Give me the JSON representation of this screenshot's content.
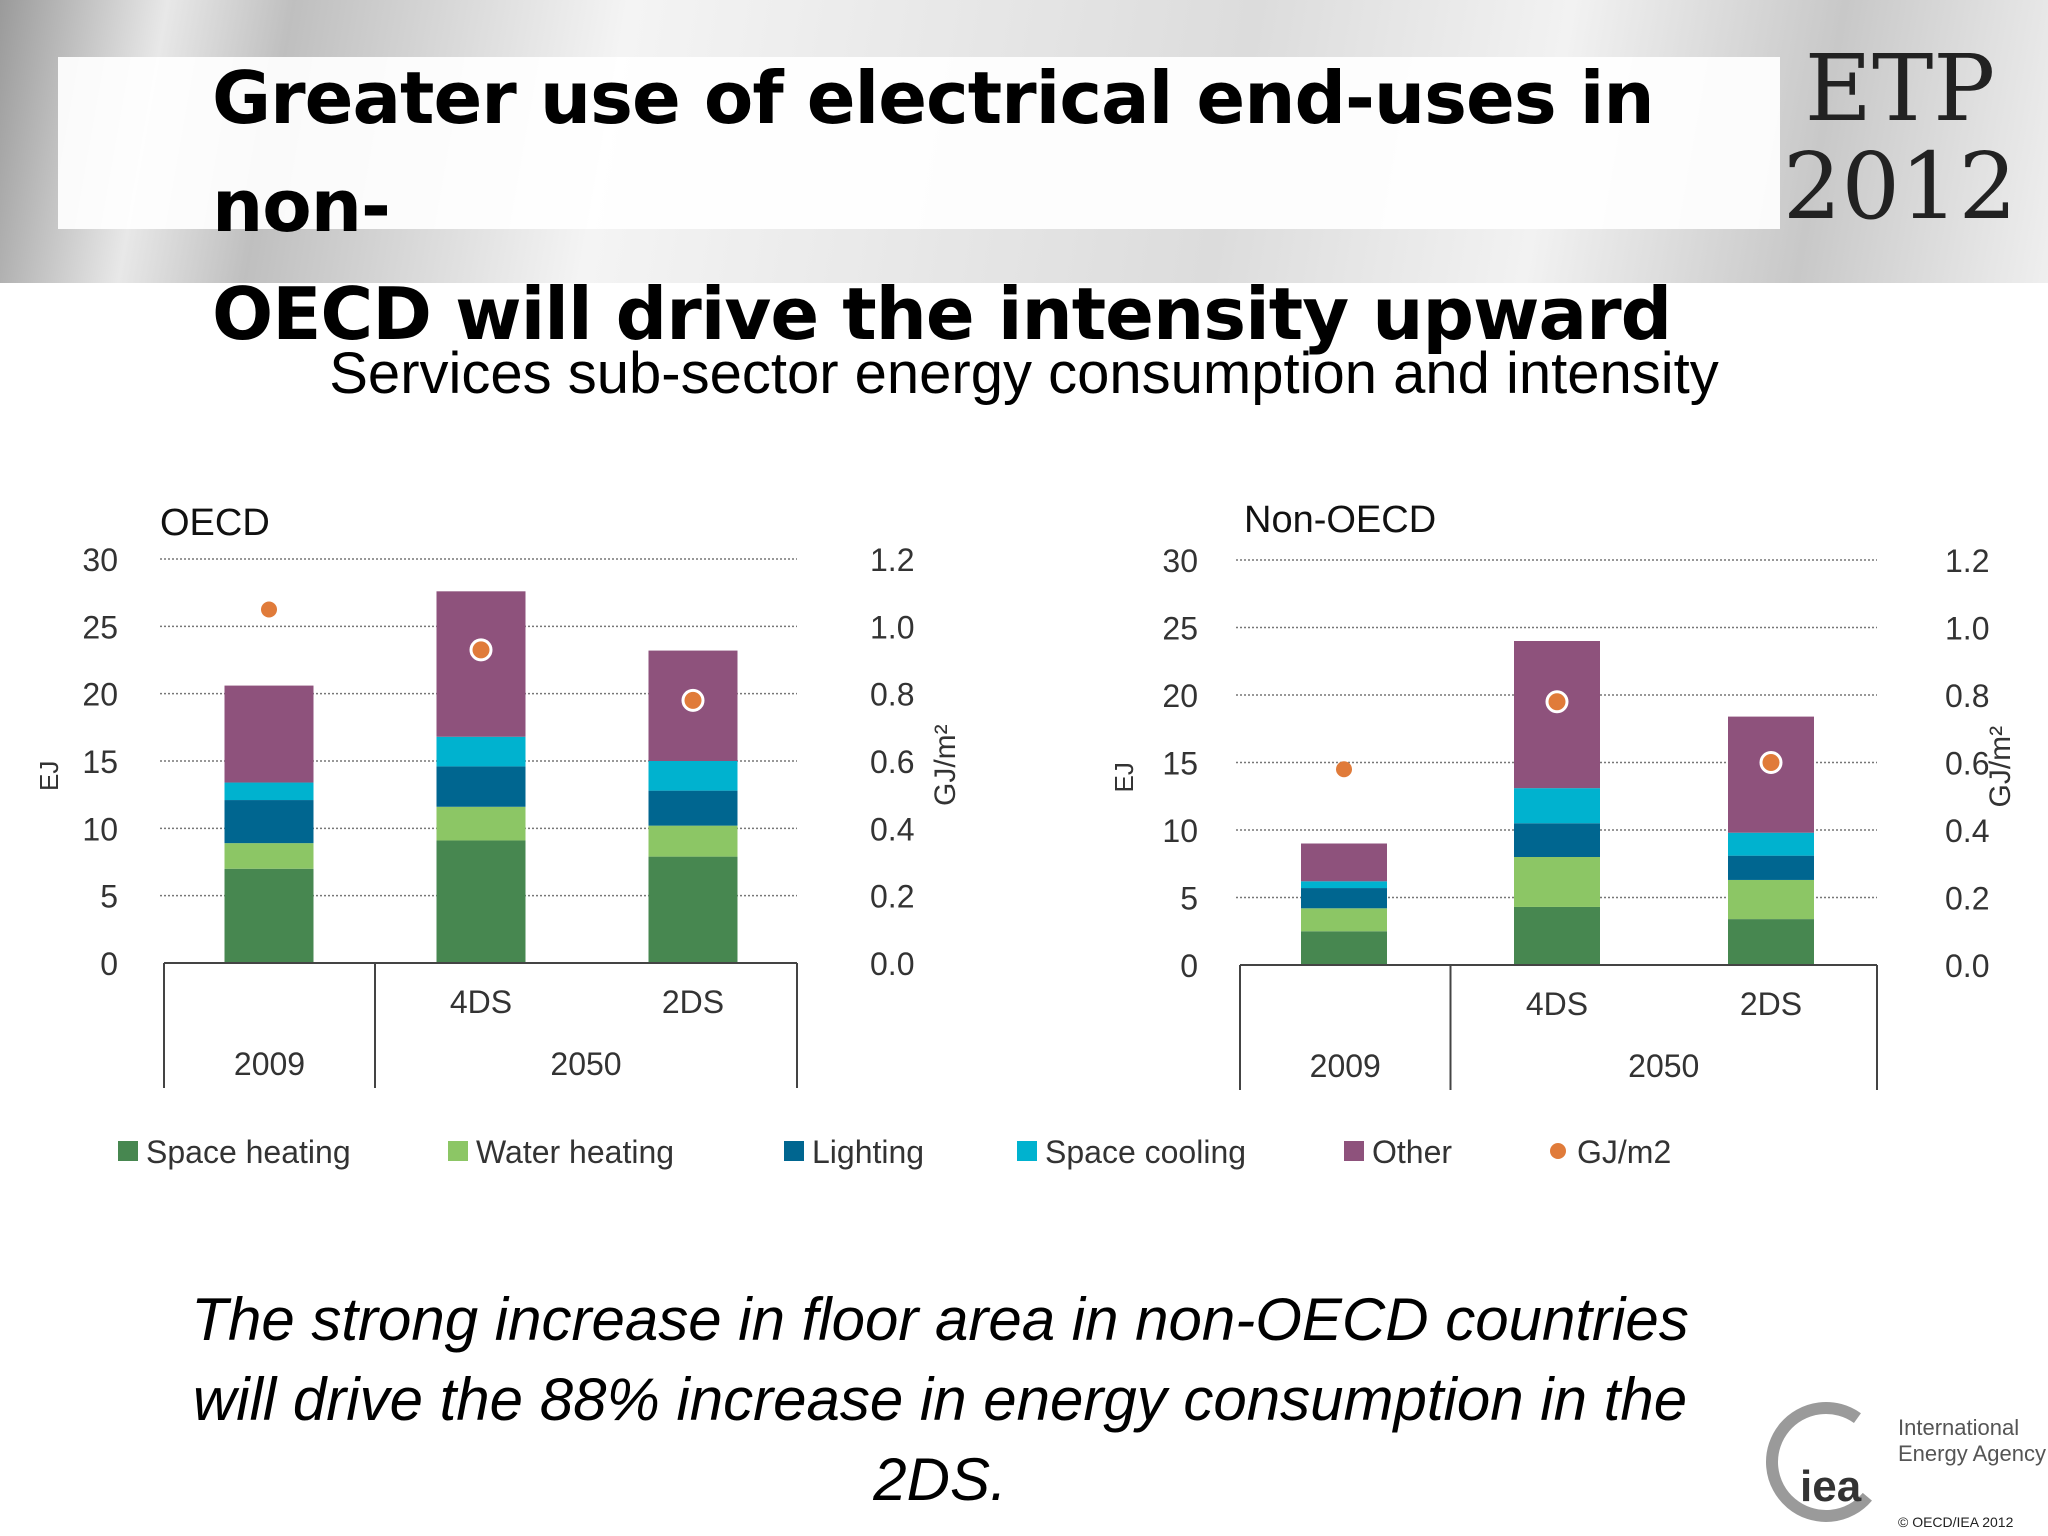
{
  "header": {
    "title_line1": "Greater use of electrical end-uses in non-",
    "title_line2": "OECD will drive the intensity upward",
    "etp_line1": "ETP",
    "etp_line2": "2012"
  },
  "subtitle": "Services sub-sector energy consumption and intensity",
  "footer": {
    "line1": "The strong increase in floor area in non-OECD countries",
    "line2": "will drive the 88% increase in energy consumption in the",
    "line3": "2DS."
  },
  "logo": {
    "mark": "iea",
    "line1": "International",
    "line2": "Energy Agency",
    "copyright": "© OECD/IEA 2012"
  },
  "colors": {
    "Space heating": "#478750",
    "Water heating": "#8cc665",
    "Lighting": "#006690",
    "Space cooling": "#00b2cf",
    "Other": "#8e527c",
    "GJ/m2": "#e07b3a"
  },
  "legend": [
    "Space heating",
    "Water heating",
    "Lighting",
    "Space cooling",
    "Other",
    "GJ/m2"
  ],
  "chart_data": [
    {
      "type": "bar",
      "stacked": true,
      "title": "OECD",
      "ylabel": "EJ",
      "y2label": "GJ/m²",
      "ylim": [
        0,
        30
      ],
      "y2lim": [
        0,
        1.2
      ],
      "yticks": [
        "0",
        "5",
        "10",
        "15",
        "20",
        "25",
        "30"
      ],
      "y2ticks": [
        "0.0",
        "0.2",
        "0.4",
        "0.6",
        "0.8",
        "1.0",
        "1.2"
      ],
      "grid": true,
      "categories": [
        "",
        "4DS",
        "2DS"
      ],
      "groups": [
        {
          "label": "2009",
          "span": 1
        },
        {
          "label": "2050",
          "span": 2
        }
      ],
      "series": [
        {
          "name": "Space heating",
          "values": [
            7.0,
            9.1,
            7.9
          ]
        },
        {
          "name": "Water heating",
          "values": [
            1.9,
            2.5,
            2.3
          ]
        },
        {
          "name": "Lighting",
          "values": [
            3.2,
            3.0,
            2.6
          ]
        },
        {
          "name": "Space cooling",
          "values": [
            1.3,
            2.2,
            2.2
          ]
        },
        {
          "name": "Other",
          "values": [
            7.2,
            10.8,
            8.2
          ]
        }
      ],
      "intensity": {
        "name": "GJ/m2",
        "values": [
          1.05,
          0.93,
          0.78
        ]
      }
    },
    {
      "type": "bar",
      "stacked": true,
      "title": "Non-OECD",
      "ylabel": "EJ",
      "y2label": "GJ/m²",
      "ylim": [
        0,
        30
      ],
      "y2lim": [
        0,
        1.2
      ],
      "yticks": [
        "0",
        "5",
        "10",
        "15",
        "20",
        "25",
        "30"
      ],
      "y2ticks": [
        "0.0",
        "0.2",
        "0.4",
        "0.6",
        "0.8",
        "1.0",
        "1.2"
      ],
      "grid": true,
      "categories": [
        "",
        "4DS",
        "2DS"
      ],
      "groups": [
        {
          "label": "2009",
          "span": 1
        },
        {
          "label": "2050",
          "span": 2
        }
      ],
      "series": [
        {
          "name": "Space heating",
          "values": [
            2.5,
            4.3,
            3.4
          ]
        },
        {
          "name": "Water heating",
          "values": [
            1.7,
            3.7,
            2.9
          ]
        },
        {
          "name": "Lighting",
          "values": [
            1.5,
            2.5,
            1.8
          ]
        },
        {
          "name": "Space cooling",
          "values": [
            0.5,
            2.6,
            1.7
          ]
        },
        {
          "name": "Other",
          "values": [
            2.8,
            10.9,
            8.6
          ]
        }
      ],
      "intensity": {
        "name": "GJ/m2",
        "values": [
          0.58,
          0.78,
          0.6
        ]
      }
    }
  ]
}
